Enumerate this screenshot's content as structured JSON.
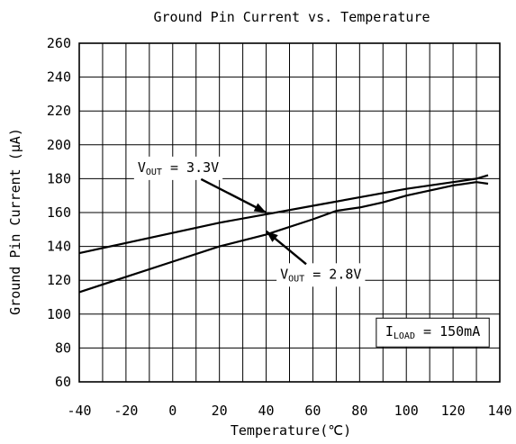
{
  "chart_data": {
    "type": "line",
    "title": "Ground Pin Current vs. Temperature",
    "xlabel": "Temperature(℃)",
    "ylabel": "Ground Pin Current (μA)",
    "xlim": [
      -40,
      140
    ],
    "ylim": [
      60,
      260
    ],
    "x_ticks": [
      -40,
      -20,
      0,
      20,
      40,
      60,
      80,
      100,
      120,
      140
    ],
    "y_ticks": [
      60,
      80,
      100,
      120,
      140,
      160,
      180,
      200,
      220,
      240,
      260
    ],
    "grid": true,
    "series": [
      {
        "name": "VOUT = 3.3V",
        "x": [
          -40,
          -20,
          0,
          20,
          40,
          60,
          80,
          100,
          120,
          130,
          135
        ],
        "y": [
          136,
          142,
          148,
          154,
          159,
          164,
          169,
          174,
          178,
          180,
          182
        ]
      },
      {
        "name": "VOUT = 2.8V",
        "x": [
          -40,
          -20,
          0,
          20,
          40,
          60,
          70,
          80,
          90,
          100,
          120,
          130,
          135
        ],
        "y": [
          113,
          122,
          131,
          140,
          147,
          156,
          161,
          163,
          166,
          170,
          176,
          178,
          177
        ]
      }
    ],
    "annotations": [
      {
        "main": "V",
        "sub": "OUT",
        "rest": " = 3.3V",
        "at": [
          -15,
          184
        ],
        "arrow_to": [
          40,
          160
        ]
      },
      {
        "main": "V",
        "sub": "OUT",
        "rest": " = 2.8V",
        "at": [
          46,
          121
        ],
        "arrow_to": [
          40,
          149
        ]
      },
      {
        "main": "I",
        "sub": "LOAD",
        "rest": " = 150mA",
        "at": [
          91,
          87
        ],
        "boxed": true
      }
    ]
  }
}
